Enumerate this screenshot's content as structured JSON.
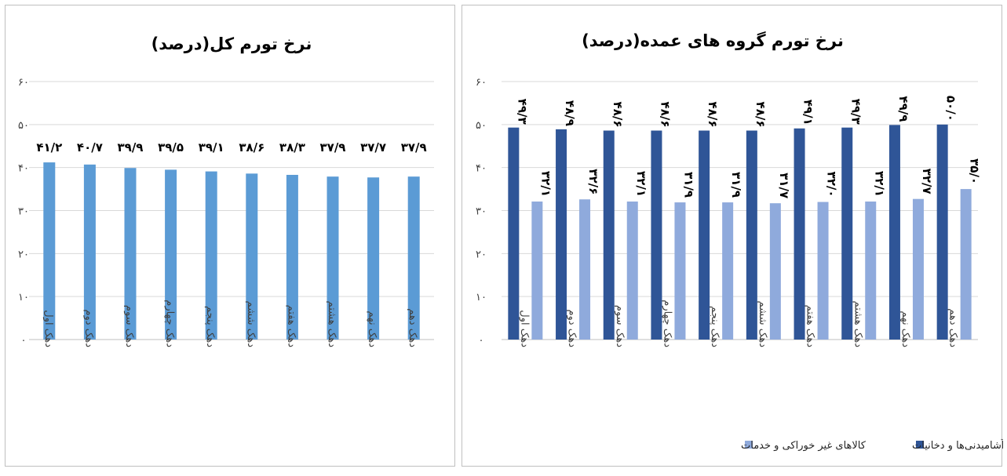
{
  "chart_data": [
    {
      "type": "bar",
      "title": "نرخ تورم کل(درصد)",
      "ylim": [
        0,
        60
      ],
      "yticks": [
        0,
        10,
        20,
        30,
        40,
        50,
        60
      ],
      "ytick_labels": [
        "۰",
        "۱۰",
        "۲۰",
        "۳۰",
        "۴۰",
        "۵۰",
        "۶۰"
      ],
      "grid": true,
      "categories": [
        "دهک اول",
        "دهک دوم",
        "دهک سوم",
        "دهک چهارم",
        "دهک پنجم",
        "دهک ششم",
        "دهک هفتم",
        "دهک هشتم",
        "دهک نهم",
        "دهک دهم"
      ],
      "values": [
        41.2,
        40.7,
        39.9,
        39.5,
        39.1,
        38.6,
        38.3,
        37.9,
        37.7,
        37.9
      ],
      "data_labels": [
        "۴۱/۲",
        "۴۰/۷",
        "۳۹/۹",
        "۳۹/۵",
        "۳۹/۱",
        "۳۸/۶",
        "۳۸/۳",
        "۳۷/۹",
        "۳۷/۷",
        "۳۷/۹"
      ],
      "color": "#5b9bd5"
    },
    {
      "type": "bar",
      "title": "نرخ تورم گروه های عمده(درصد)",
      "ylim": [
        0,
        60
      ],
      "yticks": [
        0,
        10,
        20,
        30,
        40,
        50,
        60
      ],
      "ytick_labels": [
        "۰",
        "۱۰",
        "۲۰",
        "۳۰",
        "۴۰",
        "۵۰",
        "۶۰"
      ],
      "grid": true,
      "legend_position": "bottom",
      "categories": [
        "دهک اول",
        "دهک دوم",
        "دهک سوم",
        "دهک چهارم",
        "دهک پنجم",
        "دهک ششم",
        "دهک هفتم",
        "دهک هشتم",
        "دهک نهم",
        "دهک دهم"
      ],
      "series": [
        {
          "name": "خوراکی‌ها، آشامیدنی‌ها و دخانیات",
          "color": "#2f5597",
          "values": [
            49.3,
            48.9,
            48.6,
            48.6,
            48.6,
            48.6,
            49.1,
            49.3,
            49.9,
            50.0
          ],
          "data_labels": [
            "۴۹/۳",
            "۴۸/۹",
            "۴۸/۶",
            "۴۸/۶",
            "۴۸/۶",
            "۴۸/۶",
            "۴۹/۱",
            "۴۹/۳",
            "۴۹/۹",
            "۵۰/۰"
          ]
        },
        {
          "name": "کالاهای غیر خوراکی و خدمات",
          "color": "#8faadc",
          "values": [
            32.1,
            32.6,
            32.1,
            31.9,
            31.9,
            31.7,
            32.0,
            32.1,
            32.7,
            35.0
          ],
          "data_labels": [
            "۳۲/۱",
            "۳۲/۶",
            "۳۲/۱",
            "۳۱/۹",
            "۳۱/۹",
            "۳۱/۷",
            "۳۲/۰",
            "۳۲/۱",
            "۳۲/۷",
            "۳۵/۰"
          ]
        }
      ]
    }
  ]
}
